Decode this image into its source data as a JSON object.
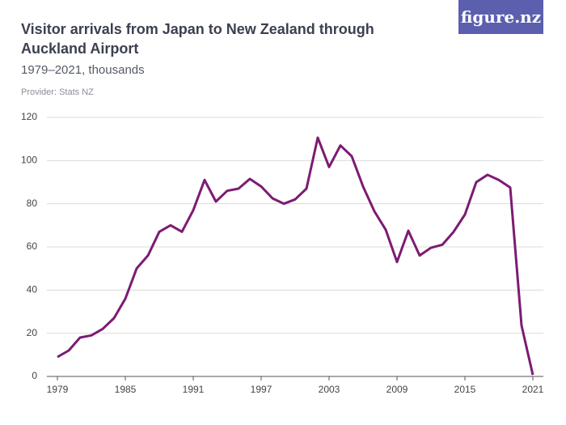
{
  "logo": "figure.nz",
  "chart_data": {
    "type": "line",
    "title": "Visitor arrivals from Japan to New Zealand through Auckland Airport",
    "subtitle": "1979–2021, thousands",
    "provider": "Provider: Stats NZ",
    "x": [
      1979,
      1980,
      1981,
      1982,
      1983,
      1984,
      1985,
      1986,
      1987,
      1988,
      1989,
      1990,
      1991,
      1992,
      1993,
      1994,
      1995,
      1996,
      1997,
      1998,
      1999,
      2000,
      2001,
      2002,
      2003,
      2004,
      2005,
      2006,
      2007,
      2008,
      2009,
      2010,
      2011,
      2012,
      2013,
      2014,
      2015,
      2016,
      2017,
      2018,
      2019,
      2020,
      2021
    ],
    "values": [
      9,
      12,
      18,
      19,
      22,
      27,
      36,
      50,
      56,
      67,
      70,
      67,
      77,
      91,
      81,
      86,
      87,
      91.5,
      88,
      82.5,
      80,
      82,
      87,
      110.6,
      97,
      107,
      102,
      88,
      76.5,
      68,
      53,
      67.5,
      56,
      59.6,
      61,
      67,
      75,
      90,
      93.4,
      91,
      87.5,
      23.6,
      0.7
    ],
    "color": "#7c1b73",
    "xlim": [
      1979,
      2021
    ],
    "xticks": [
      1979,
      1985,
      1991,
      1997,
      2003,
      2009,
      2015,
      2021
    ],
    "ylim": [
      0,
      120
    ],
    "yticks": [
      0,
      20,
      40,
      60,
      80,
      100,
      120
    ],
    "grid": true
  }
}
